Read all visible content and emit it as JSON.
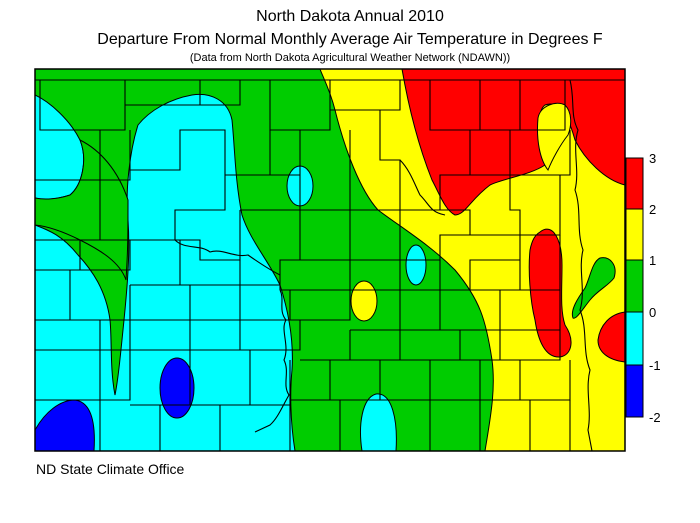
{
  "header": {
    "title": "North Dakota Annual 2010",
    "subtitle": "Departure From Normal Monthly Average Air Temperature in Degrees F",
    "source_note": "(Data from North Dakota Agricultural Weather Network (NDAWN))"
  },
  "footer": {
    "credit": "ND State Climate Office"
  },
  "legend": {
    "ticks": [
      "3",
      "2",
      "1",
      "0",
      "-1",
      "-2"
    ],
    "bands": [
      {
        "range": "2 to 3",
        "color": "#ff0000"
      },
      {
        "range": "1 to 2",
        "color": "#ffff00"
      },
      {
        "range": "0 to 1",
        "color": "#00cc00"
      },
      {
        "range": "-1 to 0",
        "color": "#00ffff"
      },
      {
        "range": "-2 to -1",
        "color": "#0000ff"
      }
    ]
  },
  "colors": {
    "above_2": "#ff0000",
    "1_to_2": "#ffff00",
    "0_to_1": "#00cc00",
    "minus1_to_0": "#00ffff",
    "minus2_to_minus1": "#0000ff",
    "county_lines": "#000000"
  }
}
